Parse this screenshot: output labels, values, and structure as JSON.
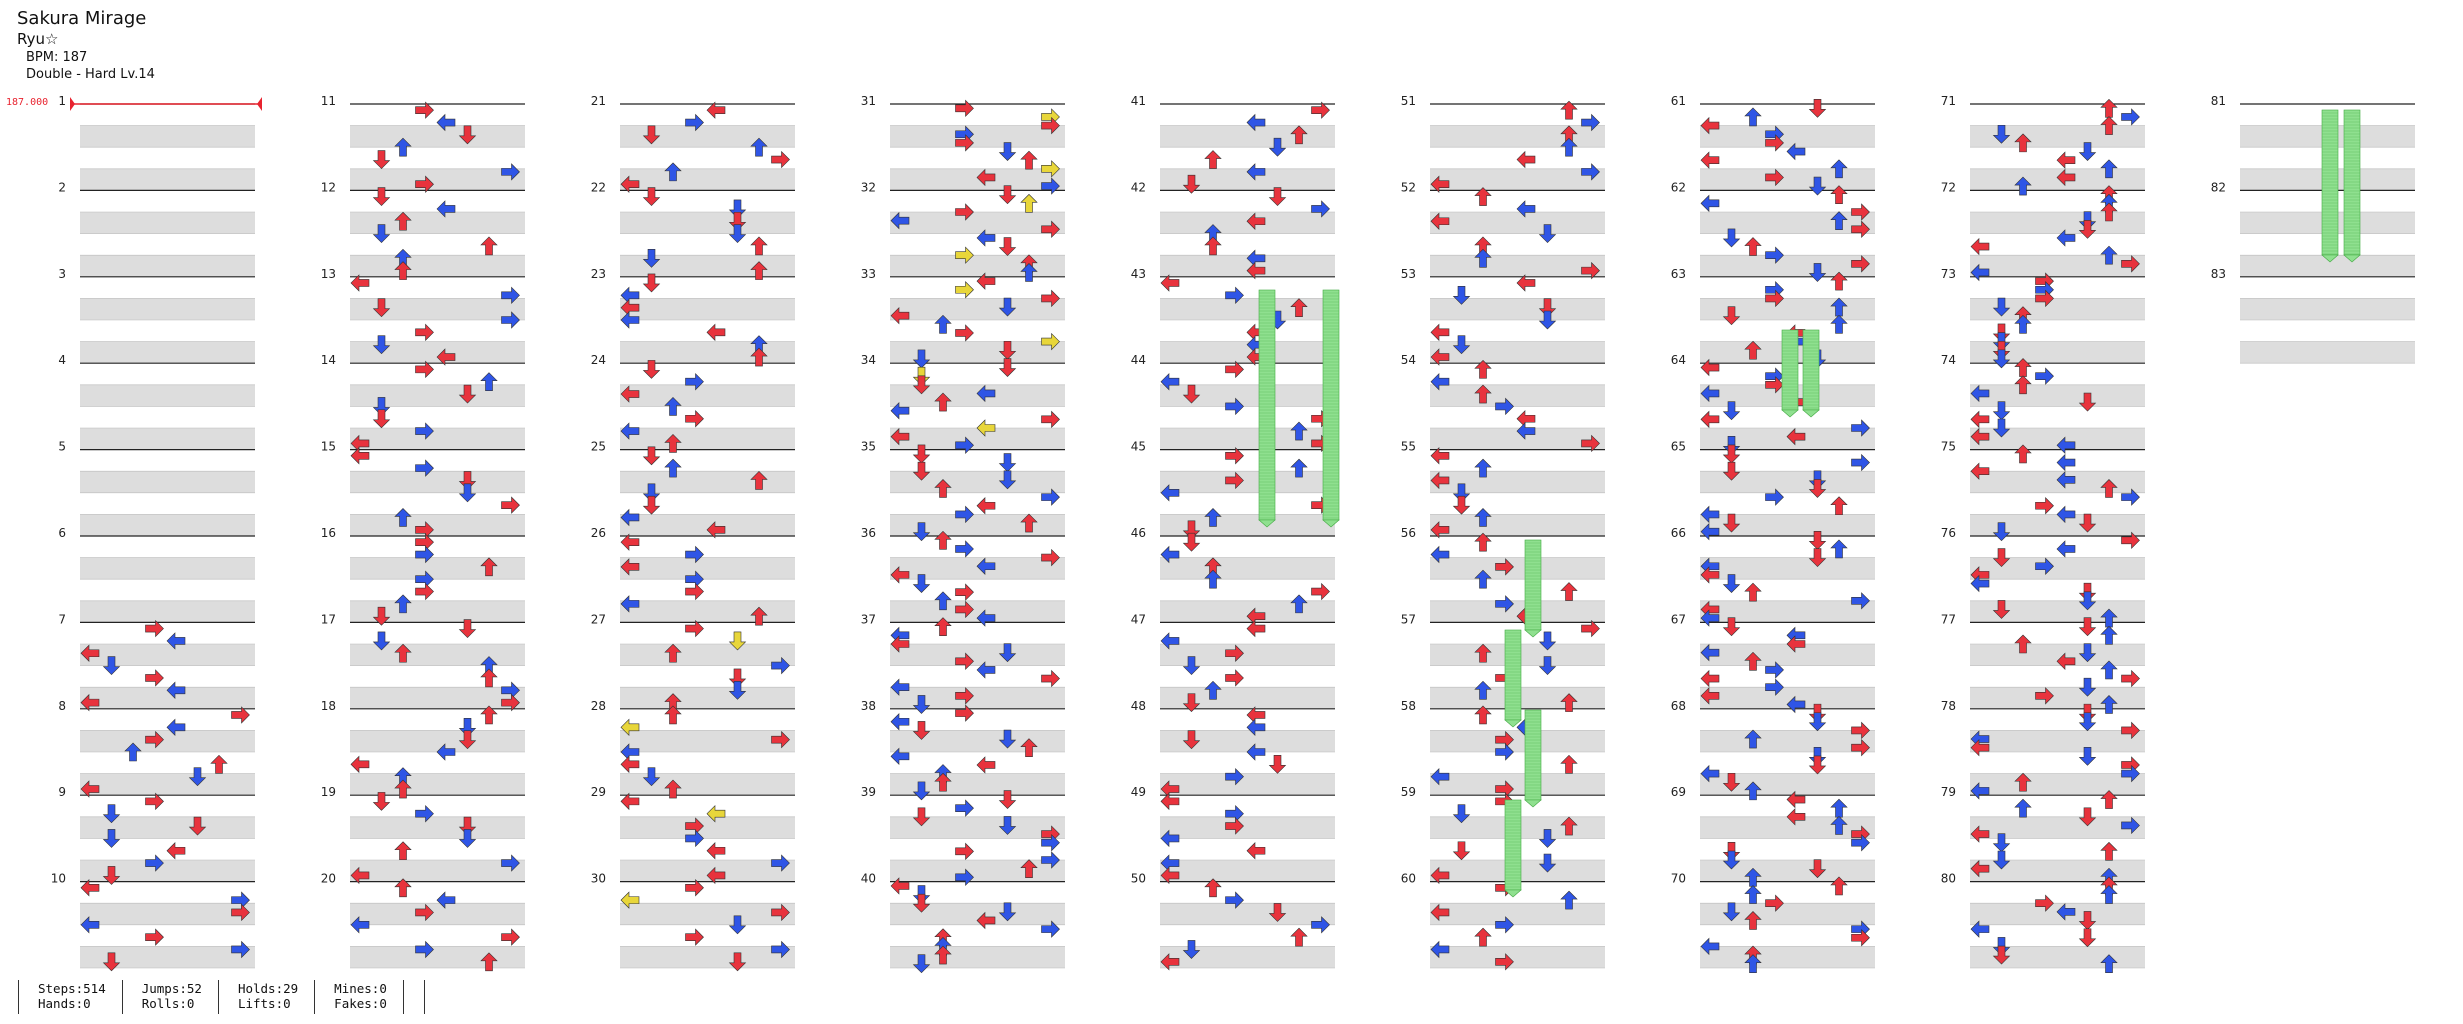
{
  "song": {
    "title": "Sakura Mirage",
    "artist": "Ryu☆",
    "bpm_line": "BPM: 187",
    "difficulty_line": "Double - Hard  Lv.14"
  },
  "bpm_marker": "187.000",
  "measures": [
    "1",
    "2",
    "3",
    "4",
    "5",
    "6",
    "7",
    "8",
    "9",
    "10",
    "11",
    "12",
    "13",
    "14",
    "15",
    "16",
    "17",
    "18",
    "19",
    "20",
    "21",
    "22",
    "23",
    "24",
    "25",
    "26",
    "27",
    "28",
    "29",
    "30",
    "31",
    "32",
    "33",
    "34",
    "35",
    "36",
    "37",
    "38",
    "39",
    "40",
    "41",
    "42",
    "43",
    "44",
    "45",
    "46",
    "47",
    "48",
    "49",
    "50",
    "51",
    "52",
    "53",
    "54",
    "55",
    "56",
    "57",
    "58",
    "59",
    "60",
    "61",
    "62",
    "63",
    "64",
    "65",
    "66",
    "67",
    "68",
    "69",
    "70",
    "71",
    "72",
    "73",
    "74",
    "75",
    "76",
    "77",
    "78",
    "79",
    "80",
    "81",
    "82",
    "83"
  ],
  "colors": {
    "quarter": "#e8333d",
    "eighth": "#2f55e6",
    "sixteenth": "#e8d63a",
    "hold": "#8fe08f",
    "row_shade": "#dddddd",
    "bpm": "#e8232f"
  },
  "stats": {
    "steps": "Steps:514",
    "hands": "Hands:0",
    "jumps": "Jumps:52",
    "rolls": "Rolls:0",
    "holds": "Holds:29",
    "lifts": "Lifts:0",
    "mines": "Mines:0",
    "fakes": "Fakes:0"
  }
}
